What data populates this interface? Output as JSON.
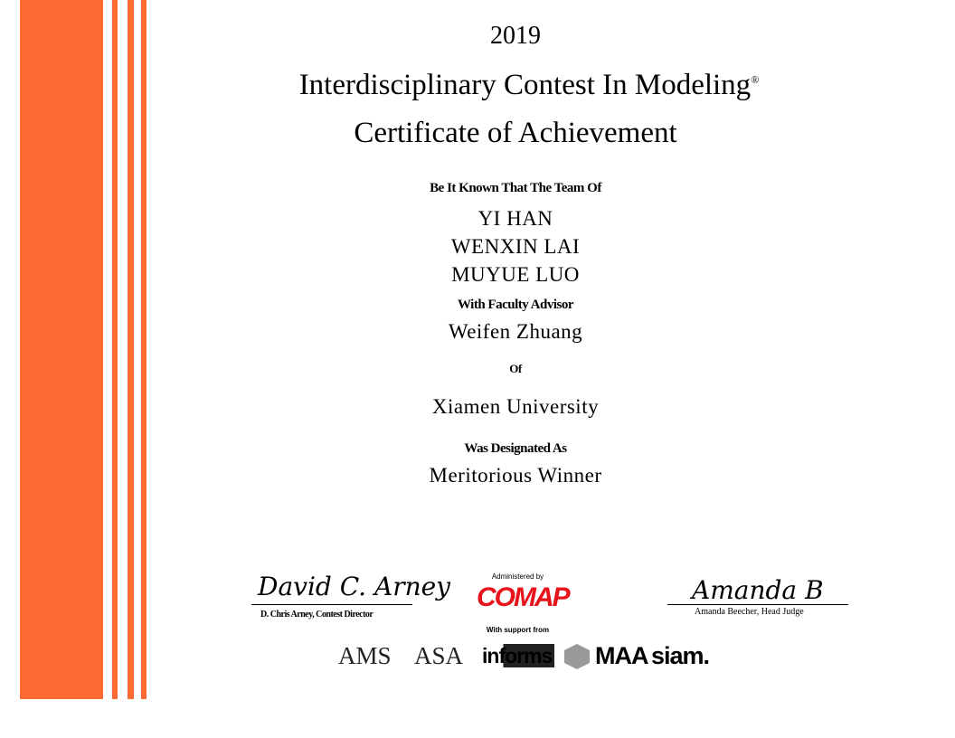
{
  "certificate": {
    "year": "2019",
    "title": "Interdisciplinary Contest In Modeling",
    "registered_mark": "®",
    "subtitle": "Certificate of Achievement",
    "intro": "Be It Known That The Team Of",
    "team_members": [
      "YI HAN",
      "WENXIN LAI",
      "MUYUE LUO"
    ],
    "advisor_label": "With Faculty Advisor",
    "advisor": "Weifen Zhuang",
    "of_label": "Of",
    "institution": "Xiamen University",
    "designation_label": "Was Designated As",
    "designation": "Meritorious Winner"
  },
  "signatures": {
    "left_signature": "David C. Arney",
    "left_caption": "D. Chris Arney, Contest Director",
    "right_signature": "Amanda B",
    "right_caption": "Amanda Beecher, Head Judge"
  },
  "sponsors": {
    "administered_label": "Administered by",
    "administrator": "COMAP",
    "support_label": "With support from",
    "logos": [
      "AMS",
      "ASA",
      "informs",
      "MAA",
      "siam."
    ]
  },
  "colors": {
    "accent": "#ff6a33",
    "comap_red": "#e8141c"
  }
}
